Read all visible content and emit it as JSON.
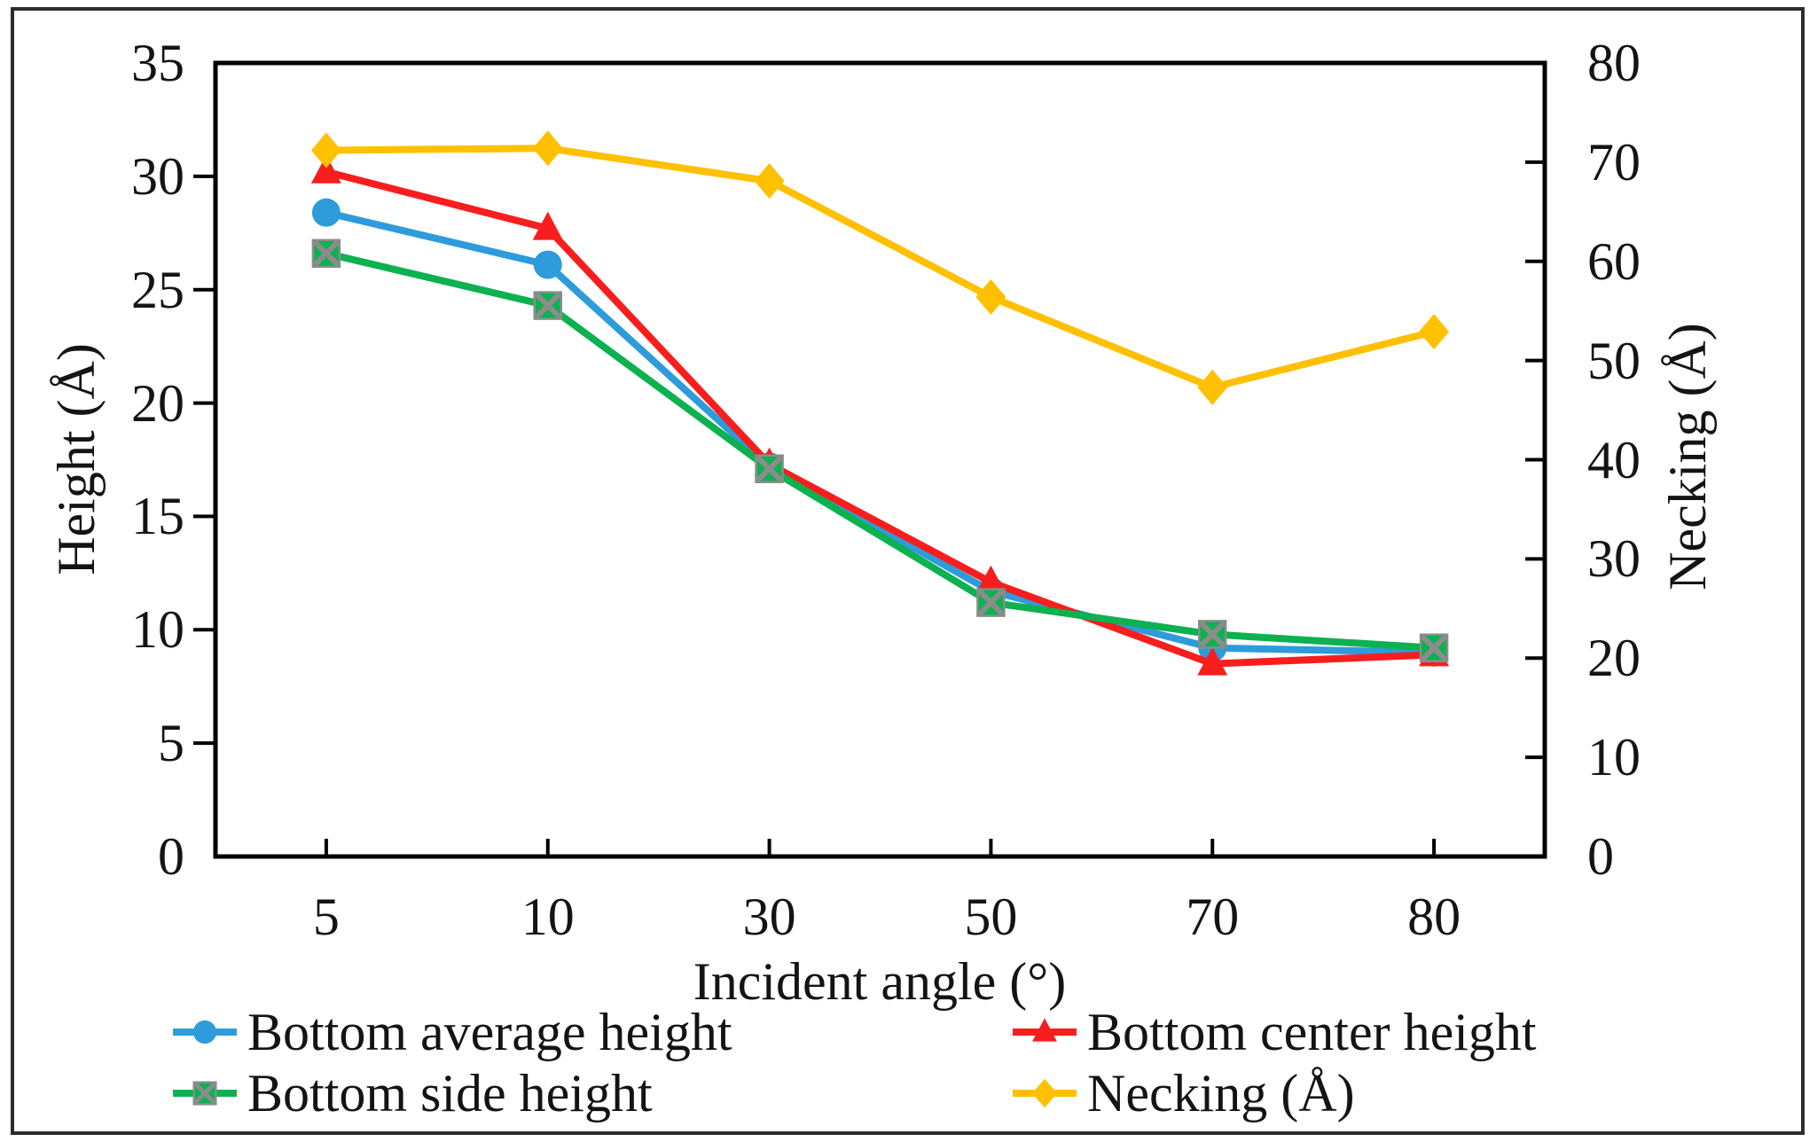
{
  "figure": {
    "background": "#ffffff",
    "border_color": "#2d2d2d",
    "axis_color": "#000000",
    "text_color": "#141414"
  },
  "chart_data": {
    "type": "line",
    "title": "",
    "grid": false,
    "legend_position": "bottom",
    "x_axis": {
      "title": "Incident angle (°)",
      "categories": [
        "5",
        "10",
        "30",
        "50",
        "70",
        "80"
      ]
    },
    "left_axis": {
      "title": "Height  (Å)",
      "min": 0,
      "max": 35,
      "step": 5,
      "tick_labels": [
        "0",
        "5",
        "10",
        "15",
        "20",
        "25",
        "30",
        "35"
      ]
    },
    "right_axis": {
      "title": "Necking  (Å)",
      "min": 0,
      "max": 80,
      "step": 10,
      "tick_labels": [
        "0",
        "10",
        "20",
        "30",
        "40",
        "50",
        "60",
        "70",
        "80"
      ]
    },
    "series": [
      {
        "name": "Bottom average height",
        "axis": "left",
        "color": "#2E9BDB",
        "marker": "circle",
        "values": [
          28.4,
          26.1,
          17.2,
          11.7,
          9.2,
          9.0
        ]
      },
      {
        "name": "Bottom center height",
        "axis": "left",
        "color": "#F81E1E",
        "marker": "triangle",
        "values": [
          30.2,
          27.7,
          17.3,
          12.1,
          8.5,
          8.9
        ]
      },
      {
        "name": "Bottom side height",
        "axis": "left",
        "color": "#0CB150",
        "marker": "square-x",
        "marker_x_color": "#8C8C8C",
        "values": [
          26.6,
          24.3,
          17.1,
          11.2,
          9.8,
          9.2
        ]
      },
      {
        "name": "Necking (Å)",
        "axis": "right",
        "color": "#FFC000",
        "marker": "diamond",
        "values": [
          71.2,
          71.4,
          68.1,
          56.4,
          47.3,
          52.9
        ]
      }
    ]
  }
}
